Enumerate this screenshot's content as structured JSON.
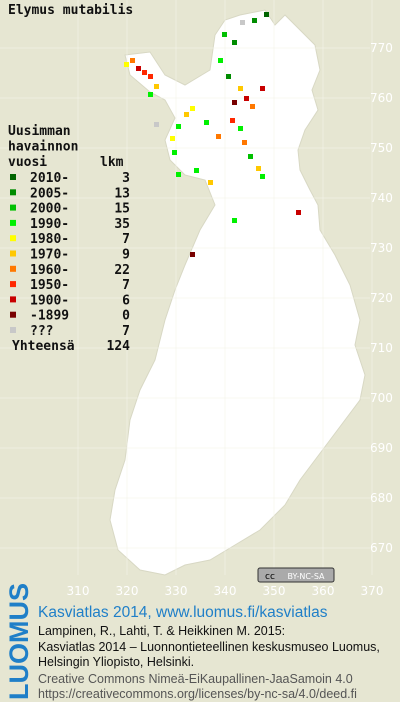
{
  "title": "Elymus mutabilis",
  "legend": {
    "heading": [
      "Uusimman",
      "havainnon",
      "vuosi"
    ],
    "count_heading": "lkm",
    "items": [
      {
        "label": "2010-",
        "count": 3,
        "color": "#006400"
      },
      {
        "label": "2005-",
        "count": 13,
        "color": "#008c00"
      },
      {
        "label": "2000-",
        "count": 15,
        "color": "#00c000"
      },
      {
        "label": "1990-",
        "count": 35,
        "color": "#00f000"
      },
      {
        "label": "1980-",
        "count": 7,
        "color": "#ffff00"
      },
      {
        "label": "1970-",
        "count": 9,
        "color": "#ffc800"
      },
      {
        "label": "1960-",
        "count": 22,
        "color": "#ff7800"
      },
      {
        "label": "1950-",
        "count": 7,
        "color": "#ff2800"
      },
      {
        "label": "1900-",
        "count": 6,
        "color": "#c80000"
      },
      {
        "label": "-1899",
        "count": 0,
        "color": "#780000"
      },
      {
        "label": "???",
        "count": 7,
        "color": "#c8c8c8"
      }
    ],
    "total_label": "Yhteensä",
    "total": 124
  },
  "grid": {
    "x_labels": [
      310,
      320,
      330,
      340,
      350,
      360,
      370
    ],
    "y_labels": [
      770,
      760,
      750,
      740,
      730,
      720,
      710,
      700,
      690,
      680,
      670
    ]
  },
  "license_badge": {
    "cc": "cc",
    "terms": "BY-NC-SA"
  },
  "footer": {
    "logo": "LUOMUS",
    "heading": "Kasviatlas 2014, www.luomus.fi/kasviatlas",
    "citation": [
      "Lampinen, R., Lahti, T. & Heikkinen M. 2015:",
      "Kasviatlas 2014 – Luonnontieteellinen keskusmuseo Luomus,",
      "Helsingin Yliopisto, Helsinki."
    ],
    "license": [
      "Creative Commons Nimeä-EiKaupallinen-JaaSamoin 4.0",
      "https://creativecommons.org/licenses/by-nc-sa/4.0/deed.fi"
    ]
  }
}
